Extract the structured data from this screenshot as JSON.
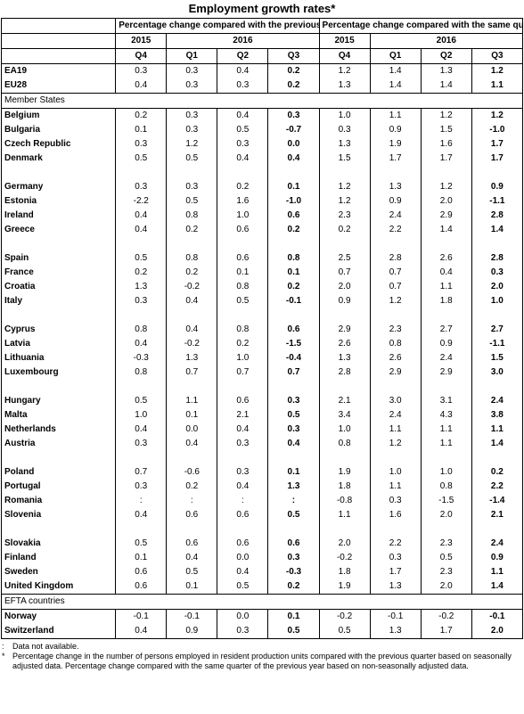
{
  "title": "Employment growth rates*",
  "header": {
    "group_prev_quarter": "Percentage change compared with the previous quarter",
    "group_prev_year": "Percentage change compared with the same quarter of the previous year",
    "year_2015": "2015",
    "year_2016": "2016",
    "quarters": [
      "Q4",
      "Q1",
      "Q2",
      "Q3",
      "Q4",
      "Q1",
      "Q2",
      "Q3"
    ]
  },
  "aggregates": [
    {
      "name": "EA19",
      "values": [
        "0.3",
        "0.3",
        "0.4",
        "0.2",
        "1.2",
        "1.4",
        "1.3",
        "1.2"
      ]
    },
    {
      "name": "EU28",
      "values": [
        "0.4",
        "0.3",
        "0.3",
        "0.2",
        "1.3",
        "1.4",
        "1.4",
        "1.1"
      ]
    }
  ],
  "member_states_label": "Member States",
  "member_groups": [
    [
      {
        "name": "Belgium",
        "values": [
          "0.2",
          "0.3",
          "0.4",
          "0.3",
          "1.0",
          "1.1",
          "1.2",
          "1.2"
        ]
      },
      {
        "name": "Bulgaria",
        "values": [
          "0.1",
          "0.3",
          "0.5",
          "-0.7",
          "0.3",
          "0.9",
          "1.5",
          "-1.0"
        ]
      },
      {
        "name": "Czech Republic",
        "values": [
          "0.3",
          "1.2",
          "0.3",
          "0.0",
          "1.3",
          "1.9",
          "1.6",
          "1.7"
        ]
      },
      {
        "name": "Denmark",
        "values": [
          "0.5",
          "0.5",
          "0.4",
          "0.4",
          "1.5",
          "1.7",
          "1.7",
          "1.7"
        ]
      }
    ],
    [
      {
        "name": "Germany",
        "values": [
          "0.3",
          "0.3",
          "0.2",
          "0.1",
          "1.2",
          "1.3",
          "1.2",
          "0.9"
        ]
      },
      {
        "name": "Estonia",
        "values": [
          "-2.2",
          "0.5",
          "1.6",
          "-1.0",
          "1.2",
          "0.9",
          "2.0",
          "-1.1"
        ]
      },
      {
        "name": "Ireland",
        "values": [
          "0.4",
          "0.8",
          "1.0",
          "0.6",
          "2.3",
          "2.4",
          "2.9",
          "2.8"
        ]
      },
      {
        "name": "Greece",
        "values": [
          "0.4",
          "0.2",
          "0.6",
          "0.2",
          "0.2",
          "2.2",
          "1.4",
          "1.4"
        ]
      }
    ],
    [
      {
        "name": "Spain",
        "values": [
          "0.5",
          "0.8",
          "0.6",
          "0.8",
          "2.5",
          "2.8",
          "2.6",
          "2.8"
        ]
      },
      {
        "name": "France",
        "values": [
          "0.2",
          "0.2",
          "0.1",
          "0.1",
          "0.7",
          "0.7",
          "0.4",
          "0.3"
        ]
      },
      {
        "name": "Croatia",
        "values": [
          "1.3",
          "-0.2",
          "0.8",
          "0.2",
          "2.0",
          "0.7",
          "1.1",
          "2.0"
        ]
      },
      {
        "name": "Italy",
        "values": [
          "0.3",
          "0.4",
          "0.5",
          "-0.1",
          "0.9",
          "1.2",
          "1.8",
          "1.0"
        ]
      }
    ],
    [
      {
        "name": "Cyprus",
        "values": [
          "0.8",
          "0.4",
          "0.8",
          "0.6",
          "2.9",
          "2.3",
          "2.7",
          "2.7"
        ]
      },
      {
        "name": "Latvia",
        "values": [
          "0.4",
          "-0.2",
          "0.2",
          "-1.5",
          "2.6",
          "0.8",
          "0.9",
          "-1.1"
        ]
      },
      {
        "name": "Lithuania",
        "values": [
          "-0.3",
          "1.3",
          "1.0",
          "-0.4",
          "1.3",
          "2.6",
          "2.4",
          "1.5"
        ]
      },
      {
        "name": "Luxembourg",
        "values": [
          "0.8",
          "0.7",
          "0.7",
          "0.7",
          "2.8",
          "2.9",
          "2.9",
          "3.0"
        ]
      }
    ],
    [
      {
        "name": "Hungary",
        "values": [
          "0.5",
          "1.1",
          "0.6",
          "0.3",
          "2.1",
          "3.0",
          "3.1",
          "2.4"
        ]
      },
      {
        "name": "Malta",
        "values": [
          "1.0",
          "0.1",
          "2.1",
          "0.5",
          "3.4",
          "2.4",
          "4.3",
          "3.8"
        ]
      },
      {
        "name": "Netherlands",
        "values": [
          "0.4",
          "0.0",
          "0.4",
          "0.3",
          "1.0",
          "1.1",
          "1.1",
          "1.1"
        ]
      },
      {
        "name": "Austria",
        "values": [
          "0.3",
          "0.4",
          "0.3",
          "0.4",
          "0.8",
          "1.2",
          "1.1",
          "1.4"
        ]
      }
    ],
    [
      {
        "name": "Poland",
        "values": [
          "0.7",
          "-0.6",
          "0.3",
          "0.1",
          "1.9",
          "1.0",
          "1.0",
          "0.2"
        ]
      },
      {
        "name": "Portugal",
        "values": [
          "0.3",
          "0.2",
          "0.4",
          "1.3",
          "1.8",
          "1.1",
          "0.8",
          "2.2"
        ]
      },
      {
        "name": "Romania",
        "values": [
          ":",
          ":",
          ":",
          ":",
          "-0.8",
          "0.3",
          "-1.5",
          "-1.4"
        ]
      },
      {
        "name": "Slovenia",
        "values": [
          "0.4",
          "0.6",
          "0.6",
          "0.5",
          "1.1",
          "1.6",
          "2.0",
          "2.1"
        ]
      }
    ],
    [
      {
        "name": "Slovakia",
        "values": [
          "0.5",
          "0.6",
          "0.6",
          "0.6",
          "2.0",
          "2.2",
          "2.3",
          "2.4"
        ]
      },
      {
        "name": "Finland",
        "values": [
          "0.1",
          "0.4",
          "0.0",
          "0.3",
          "-0.2",
          "0.3",
          "0.5",
          "0.9"
        ]
      },
      {
        "name": "Sweden",
        "values": [
          "0.6",
          "0.5",
          "0.4",
          "-0.3",
          "1.8",
          "1.7",
          "2.3",
          "1.1"
        ]
      },
      {
        "name": "United Kingdom",
        "values": [
          "0.6",
          "0.1",
          "0.5",
          "0.2",
          "1.9",
          "1.3",
          "2.0",
          "1.4"
        ]
      }
    ]
  ],
  "efta_label": "EFTA countries",
  "efta": [
    {
      "name": "Norway",
      "values": [
        "-0.1",
        "-0.1",
        "0.0",
        "0.1",
        "-0.2",
        "-0.1",
        "-0.2",
        "-0.1"
      ]
    },
    {
      "name": "Switzerland",
      "values": [
        "0.4",
        "0.9",
        "0.3",
        "0.5",
        "0.5",
        "1.3",
        "1.7",
        "2.0"
      ]
    }
  ],
  "footnotes": [
    {
      "mark": ":",
      "text": "Data not available."
    },
    {
      "mark": "*",
      "text": "Percentage change in the number of persons employed in resident production units compared with the previous quarter based on seasonally adjusted data. Percentage change compared with the same quarter of the previous year based on non-seasonally adjusted data."
    }
  ]
}
